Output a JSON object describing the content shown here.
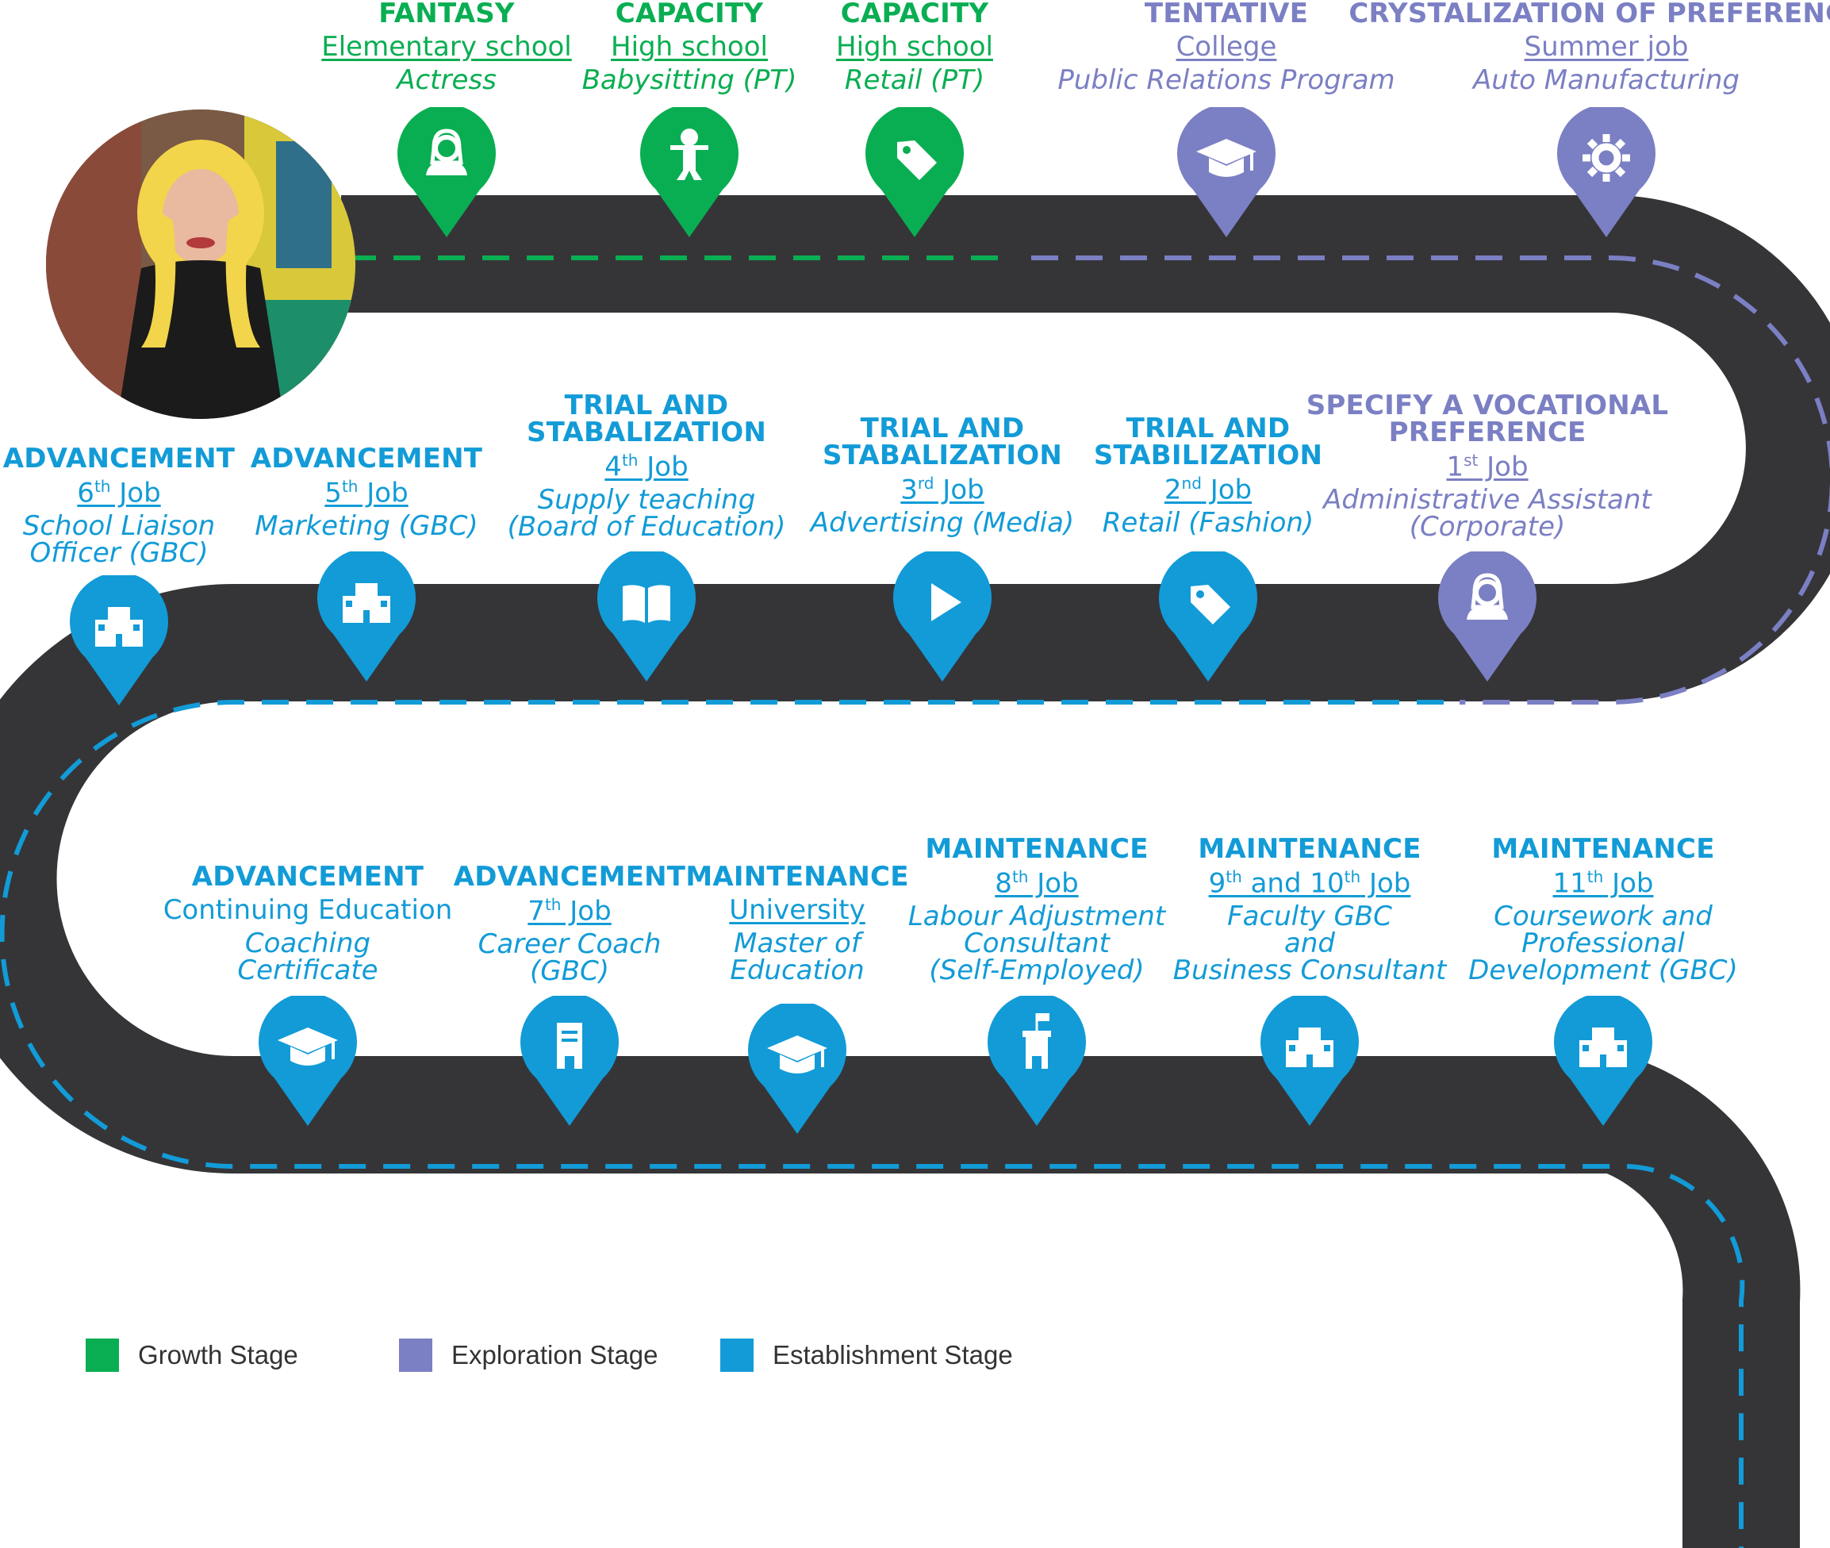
{
  "colors": {
    "growth": "#0aae52",
    "exploration": "#7b7fc3",
    "establishment": "#129bd7",
    "road": "#353538",
    "background": "#ffffff"
  },
  "milestones": [
    {
      "stage": [
        "FANTASY"
      ],
      "context": "Elementary school",
      "detail": [
        "Actress"
      ],
      "icon": "person-icon",
      "category": "growth"
    },
    {
      "stage": [
        "CAPACITY"
      ],
      "context": "High school",
      "detail": [
        "Babysitting (PT)"
      ],
      "icon": "baby-icon",
      "category": "growth"
    },
    {
      "stage": [
        "CAPACITY"
      ],
      "context": "High school",
      "detail": [
        "Retail (PT)"
      ],
      "icon": "tag-icon",
      "category": "growth"
    },
    {
      "stage": [
        "TENTATIVE"
      ],
      "context": "College",
      "detail": [
        "Public Relations Program"
      ],
      "icon": "graduation-cap-icon",
      "category": "exploration"
    },
    {
      "stage": [
        "CRYSTALIZATION OF PREFERENCE"
      ],
      "context": "Summer job",
      "detail": [
        "Auto Manufacturing"
      ],
      "icon": "gear-icon",
      "category": "exploration"
    },
    {
      "stage": [
        "SPECIFY A VOCATIONAL",
        "PREFERENCE"
      ],
      "ordinal": "1",
      "ordinal_suffix": "st",
      "context_after": " Job",
      "detail": [
        "Administrative Assistant",
        "(Corporate)"
      ],
      "icon": "person-icon",
      "category": "exploration"
    },
    {
      "stage": [
        "TRIAL AND",
        "STABILIZATION"
      ],
      "ordinal": "2",
      "ordinal_suffix": "nd",
      "context_after": " Job",
      "detail": [
        "Retail (Fashion)"
      ],
      "icon": "tag-icon",
      "category": "establishment"
    },
    {
      "stage": [
        "TRIAL AND",
        "STABALIZATION"
      ],
      "ordinal": "3",
      "ordinal_suffix": "rd",
      "context_after": " Job",
      "detail": [
        "Advertising (Media)"
      ],
      "icon": "play-icon",
      "category": "establishment"
    },
    {
      "stage": [
        "TRIAL AND",
        "STABALIZATION"
      ],
      "ordinal": "4",
      "ordinal_suffix": "th",
      "context_after": " Job",
      "detail": [
        "Supply teaching",
        "(Board of Education)"
      ],
      "icon": "book-icon",
      "category": "establishment"
    },
    {
      "stage": [
        "ADVANCEMENT"
      ],
      "ordinal": "5",
      "ordinal_suffix": "th",
      "context_after": " Job",
      "detail": [
        "Marketing (GBC)"
      ],
      "icon": "building-icon",
      "category": "establishment"
    },
    {
      "stage": [
        "ADVANCEMENT"
      ],
      "ordinal": "6",
      "ordinal_suffix": "th",
      "context_after": " Job",
      "detail": [
        "School Liaison",
        "Officer (GBC)"
      ],
      "icon": "building-icon",
      "category": "establishment"
    },
    {
      "stage": [
        "ADVANCEMENT"
      ],
      "context_plain": "Continuing Education",
      "detail": [
        "Coaching",
        "Certificate"
      ],
      "icon": "graduation-cap-icon",
      "category": "establishment"
    },
    {
      "stage": [
        "ADVANCEMENT"
      ],
      "ordinal": "7",
      "ordinal_suffix": "th",
      "context_after": " Job",
      "detail": [
        "Career Coach",
        "(GBC)"
      ],
      "icon": "tower-icon",
      "category": "establishment"
    },
    {
      "stage": [
        "MAINTENANCE"
      ],
      "context": "University",
      "detail": [
        "Master of",
        "Education"
      ],
      "icon": "graduation-cap-icon",
      "category": "establishment"
    },
    {
      "stage": [
        "MAINTENANCE"
      ],
      "ordinal": "8",
      "ordinal_suffix": "th",
      "context_after": " Job",
      "detail": [
        "Labour Adjustment",
        "Consultant",
        "(Self-Employed)"
      ],
      "icon": "castle-icon",
      "category": "establishment"
    },
    {
      "stage": [
        "MAINTENANCE"
      ],
      "ordinal": "9",
      "ordinal_suffix": "th",
      "context_middle": " and 10",
      "ordinal2_suffix": "th",
      "context_after": " Job",
      "detail": [
        "Faculty GBC",
        "and",
        "Business Consultant"
      ],
      "icon": "building-icon",
      "category": "establishment"
    },
    {
      "stage": [
        "MAINTENANCE"
      ],
      "ordinal": "11",
      "ordinal_suffix": "th",
      "context_after": " Job",
      "detail": [
        "Coursework and",
        "Professional",
        "Development (GBC)"
      ],
      "icon": "building-icon",
      "category": "establishment"
    }
  ],
  "legend": [
    {
      "label": "Growth Stage",
      "category": "growth"
    },
    {
      "label": "Exploration Stage",
      "category": "exploration"
    },
    {
      "label": "Establishment Stage",
      "category": "establishment"
    }
  ]
}
